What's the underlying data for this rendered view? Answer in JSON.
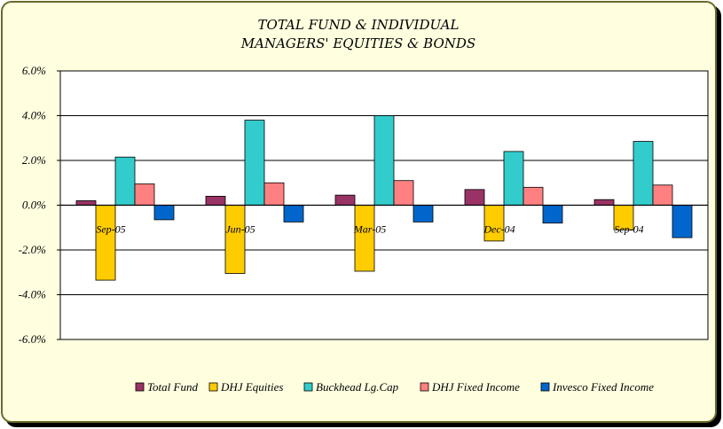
{
  "chart_data": {
    "type": "bar",
    "title": "TOTAL FUND  & INDIVIDUAL",
    "subtitle": "MANAGERS' EQUITIES & BONDS",
    "categories": [
      "Sep-05",
      "Jun-05",
      "Mar-05",
      "Dec-04",
      "Sep-04"
    ],
    "series": [
      {
        "name": "Total Fund",
        "color": "#993366",
        "values": [
          0.2,
          0.4,
          0.45,
          0.7,
          0.25
        ]
      },
      {
        "name": "DHJ Equities",
        "color": "#ffcc00",
        "values": [
          -3.35,
          -3.05,
          -2.95,
          -1.6,
          -1.1
        ]
      },
      {
        "name": "Buckhead Lg.Cap",
        "color": "#33cccc",
        "values": [
          2.15,
          3.8,
          4.0,
          2.4,
          2.85
        ]
      },
      {
        "name": "DHJ Fixed Income",
        "color": "#ff8080",
        "values": [
          0.95,
          1.0,
          1.1,
          0.8,
          0.9
        ]
      },
      {
        "name": "Invesco Fixed Income",
        "color": "#0066cc",
        "values": [
          -0.65,
          -0.75,
          -0.75,
          -0.8,
          -1.45
        ]
      }
    ],
    "ylim": [
      -6.0,
      6.0
    ],
    "yticks": [
      "6.0%",
      "4.0%",
      "2.0%",
      "0.0%",
      "-2.0%",
      "-4.0%",
      "-6.0%"
    ],
    "ytick_values": [
      6,
      4,
      2,
      0,
      -2,
      -4,
      -6
    ],
    "grid": true,
    "legend": "bottom"
  }
}
